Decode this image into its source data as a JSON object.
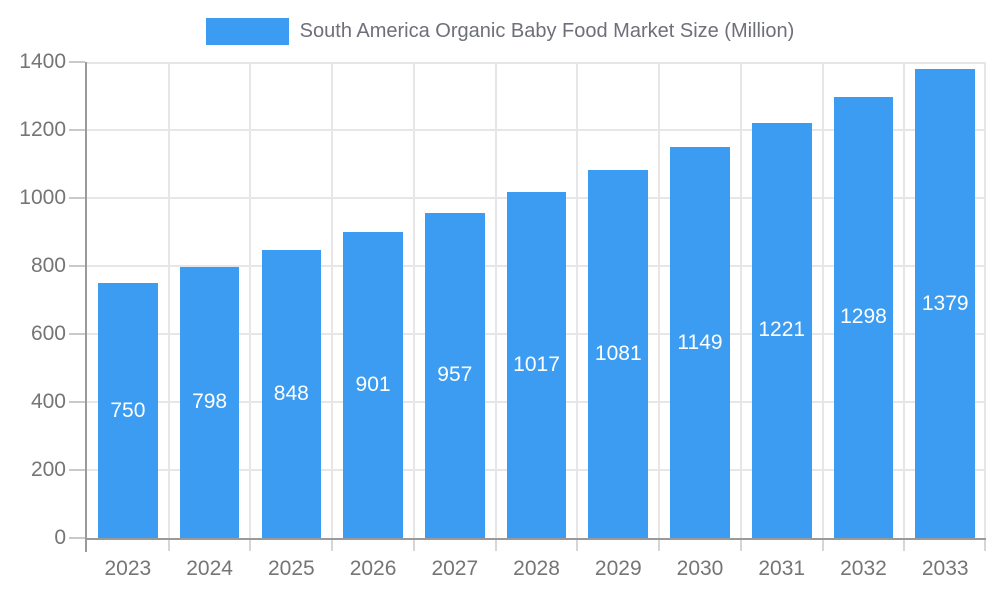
{
  "chart_data": {
    "type": "bar",
    "title": "South America Organic Baby Food Market Size (Million)",
    "series_name": "South America Organic Baby Food Market Size (Million)",
    "categories": [
      "2023",
      "2024",
      "2025",
      "2026",
      "2027",
      "2028",
      "2029",
      "2030",
      "2031",
      "2032",
      "2033"
    ],
    "values": [
      750,
      798,
      848,
      901,
      957,
      1017,
      1081,
      1149,
      1221,
      1298,
      1379
    ],
    "value_labels_shown": true,
    "value_label_position": "inside-middle",
    "xlabel": "",
    "ylabel": "",
    "ylim": [
      0,
      1400
    ],
    "ytick_interval": 200,
    "yticks": [
      0,
      200,
      400,
      600,
      800,
      1000,
      1200,
      1400
    ],
    "grid": true,
    "legend_position": "top-center",
    "colors": {
      "bar": "#3b9cf2",
      "value_label": "#ffffff",
      "axis_line": "#9a9a9a",
      "gridline": "#e6e6e6",
      "tick_label": "#757575",
      "legend_text": "#6e7079"
    }
  }
}
